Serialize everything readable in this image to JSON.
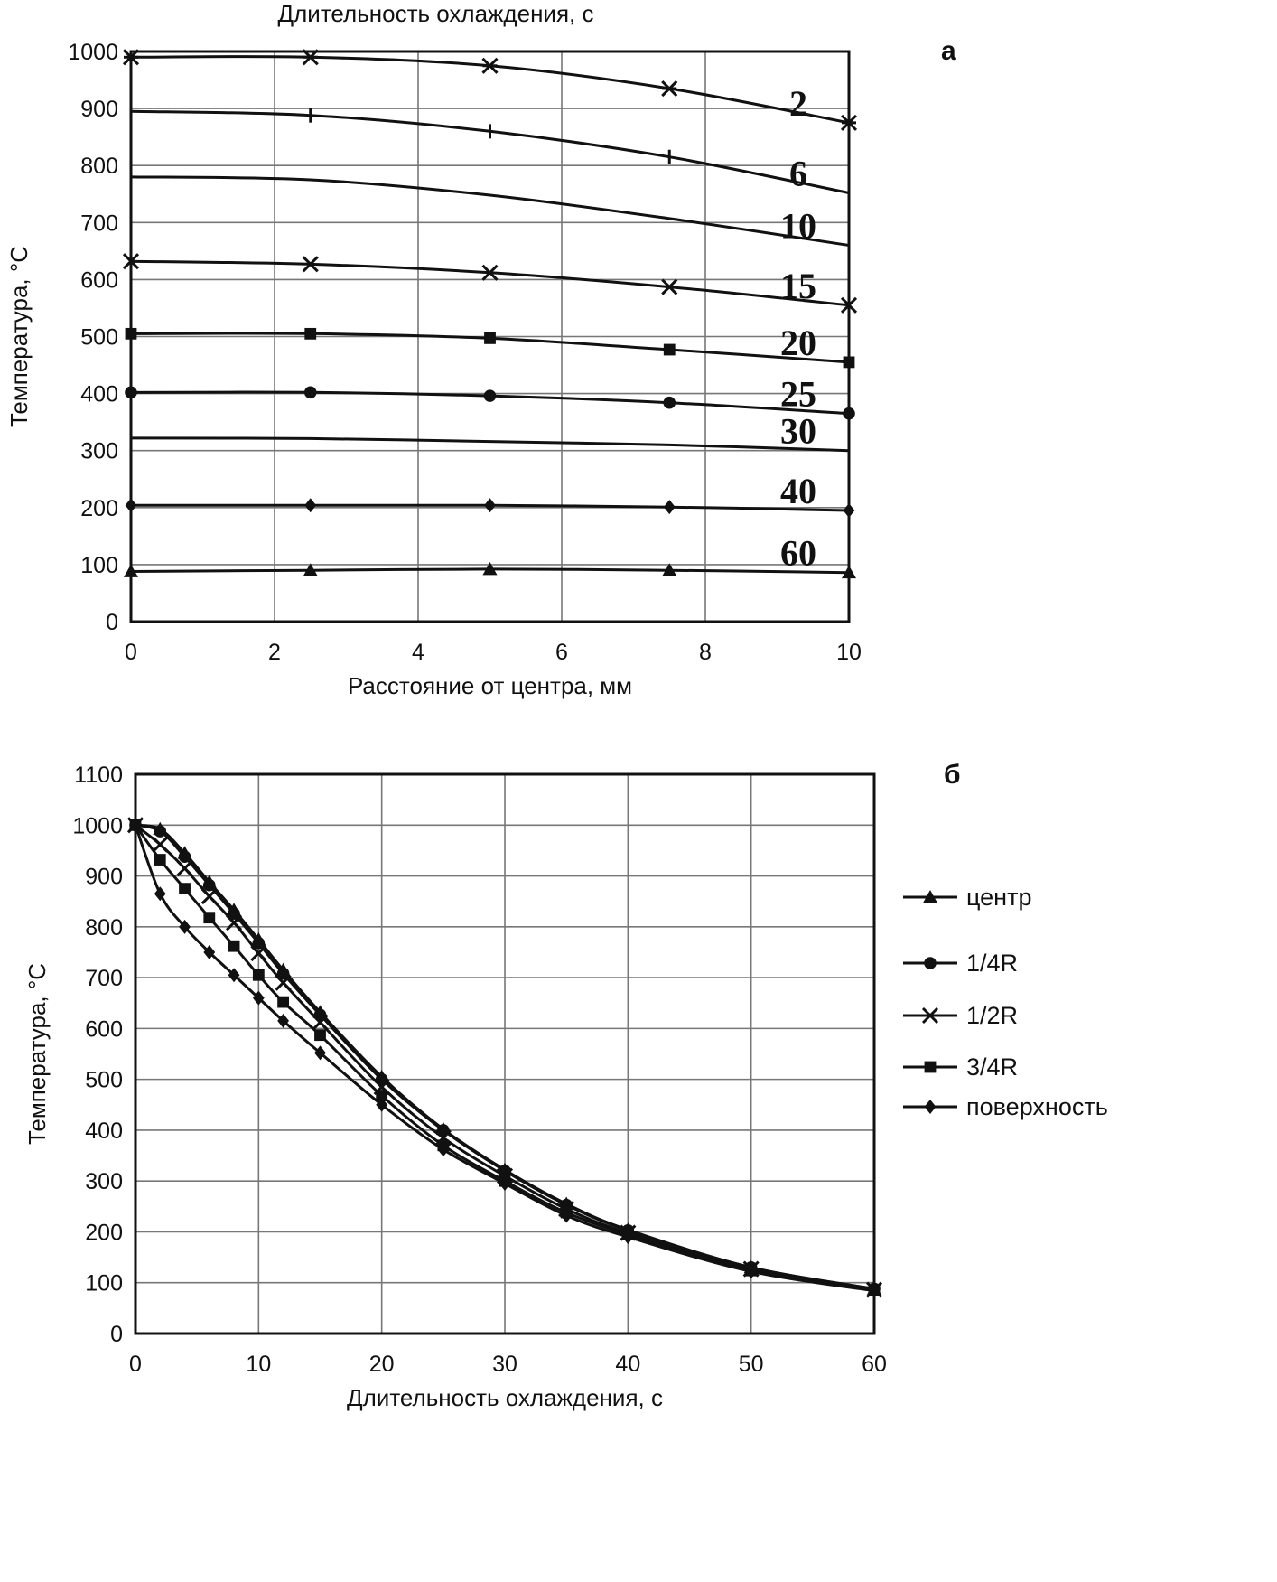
{
  "chart_data": [
    {
      "type": "line",
      "panel_label": "а",
      "top_title": "Длительность охлаждения, с",
      "xlabel": "Расстояние от центра, мм",
      "ylabel": "Температура, °C",
      "xlim": [
        0,
        10
      ],
      "ylim": [
        0,
        1000
      ],
      "x_ticks": [
        0,
        2,
        4,
        6,
        8,
        10
      ],
      "y_ticks": [
        0,
        100,
        200,
        300,
        400,
        500,
        600,
        700,
        800,
        900,
        1000
      ],
      "grid": true,
      "series": [
        {
          "name": "2",
          "marker": "asterisk",
          "x": [
            0,
            2.5,
            5,
            7.5,
            10
          ],
          "y": [
            990,
            990,
            975,
            935,
            875
          ]
        },
        {
          "name": "6",
          "marker": "plus",
          "x": [
            0,
            2.5,
            5,
            7.5,
            10
          ],
          "y": [
            895,
            888,
            860,
            815,
            752
          ]
        },
        {
          "name": "10",
          "marker": "none",
          "x": [
            0,
            2.5,
            5,
            7.5,
            10
          ],
          "y": [
            780,
            775,
            748,
            707,
            660
          ]
        },
        {
          "name": "15",
          "marker": "x",
          "x": [
            0,
            2.5,
            5,
            7.5,
            10
          ],
          "y": [
            632,
            627,
            612,
            587,
            555
          ]
        },
        {
          "name": "20",
          "marker": "square",
          "x": [
            0,
            2.5,
            5,
            7.5,
            10
          ],
          "y": [
            505,
            505,
            497,
            477,
            455
          ]
        },
        {
          "name": "25",
          "marker": "circle",
          "x": [
            0,
            2.5,
            5,
            7.5,
            10
          ],
          "y": [
            402,
            402,
            396,
            384,
            365
          ]
        },
        {
          "name": "30",
          "marker": "none",
          "x": [
            0,
            2.5,
            5,
            7.5,
            10
          ],
          "y": [
            322,
            321,
            316,
            310,
            300
          ]
        },
        {
          "name": "40",
          "marker": "diamond",
          "x": [
            0,
            2.5,
            5,
            7.5,
            10
          ],
          "y": [
            204,
            204,
            204,
            201,
            195
          ]
        },
        {
          "name": "60",
          "marker": "triangle",
          "x": [
            0,
            2.5,
            5,
            7.5,
            10
          ],
          "y": [
            88,
            90,
            92,
            90,
            86
          ]
        }
      ]
    },
    {
      "type": "line",
      "panel_label": "б",
      "xlabel": "Длительность охлаждения, с",
      "ylabel": "Температура, °C",
      "xlim": [
        0,
        60
      ],
      "ylim": [
        0,
        1100
      ],
      "x_ticks": [
        0,
        10,
        20,
        30,
        40,
        50,
        60
      ],
      "y_ticks": [
        0,
        100,
        200,
        300,
        400,
        500,
        600,
        700,
        800,
        900,
        1000,
        1100
      ],
      "grid": true,
      "legend_position": "right",
      "series": [
        {
          "name": "центр",
          "marker": "triangle",
          "x": [
            0,
            2,
            4,
            6,
            8,
            10,
            12,
            15,
            20,
            25,
            30,
            35,
            40,
            50,
            60
          ],
          "y": [
            1000,
            992,
            945,
            888,
            833,
            775,
            715,
            632,
            505,
            402,
            322,
            255,
            204,
            130,
            88
          ]
        },
        {
          "name": "1/4R",
          "marker": "circle",
          "x": [
            0,
            2,
            4,
            6,
            8,
            10,
            12,
            15,
            20,
            25,
            30,
            35,
            40,
            50,
            60
          ],
          "y": [
            1000,
            988,
            938,
            882,
            826,
            768,
            708,
            627,
            500,
            400,
            320,
            253,
            203,
            130,
            88
          ]
        },
        {
          "name": "1/2R",
          "marker": "x",
          "x": [
            0,
            2,
            4,
            6,
            8,
            10,
            12,
            15,
            20,
            25,
            30,
            35,
            40,
            50,
            60
          ],
          "y": [
            1000,
            962,
            915,
            860,
            808,
            748,
            690,
            612,
            485,
            385,
            310,
            245,
            198,
            127,
            86
          ]
        },
        {
          "name": "3/4R",
          "marker": "square",
          "x": [
            0,
            2,
            4,
            6,
            8,
            10,
            12,
            15,
            20,
            25,
            30,
            35,
            40,
            50,
            60
          ],
          "y": [
            1000,
            932,
            875,
            818,
            762,
            705,
            652,
            587,
            468,
            370,
            300,
            238,
            195,
            124,
            85
          ]
        },
        {
          "name": "поверхность",
          "marker": "diamond",
          "x": [
            0,
            2,
            4,
            6,
            8,
            10,
            12,
            15,
            20,
            25,
            30,
            35,
            40,
            50,
            60
          ],
          "y": [
            1000,
            865,
            800,
            750,
            705,
            660,
            615,
            552,
            450,
            362,
            295,
            232,
            190,
            122,
            84
          ]
        }
      ]
    }
  ]
}
